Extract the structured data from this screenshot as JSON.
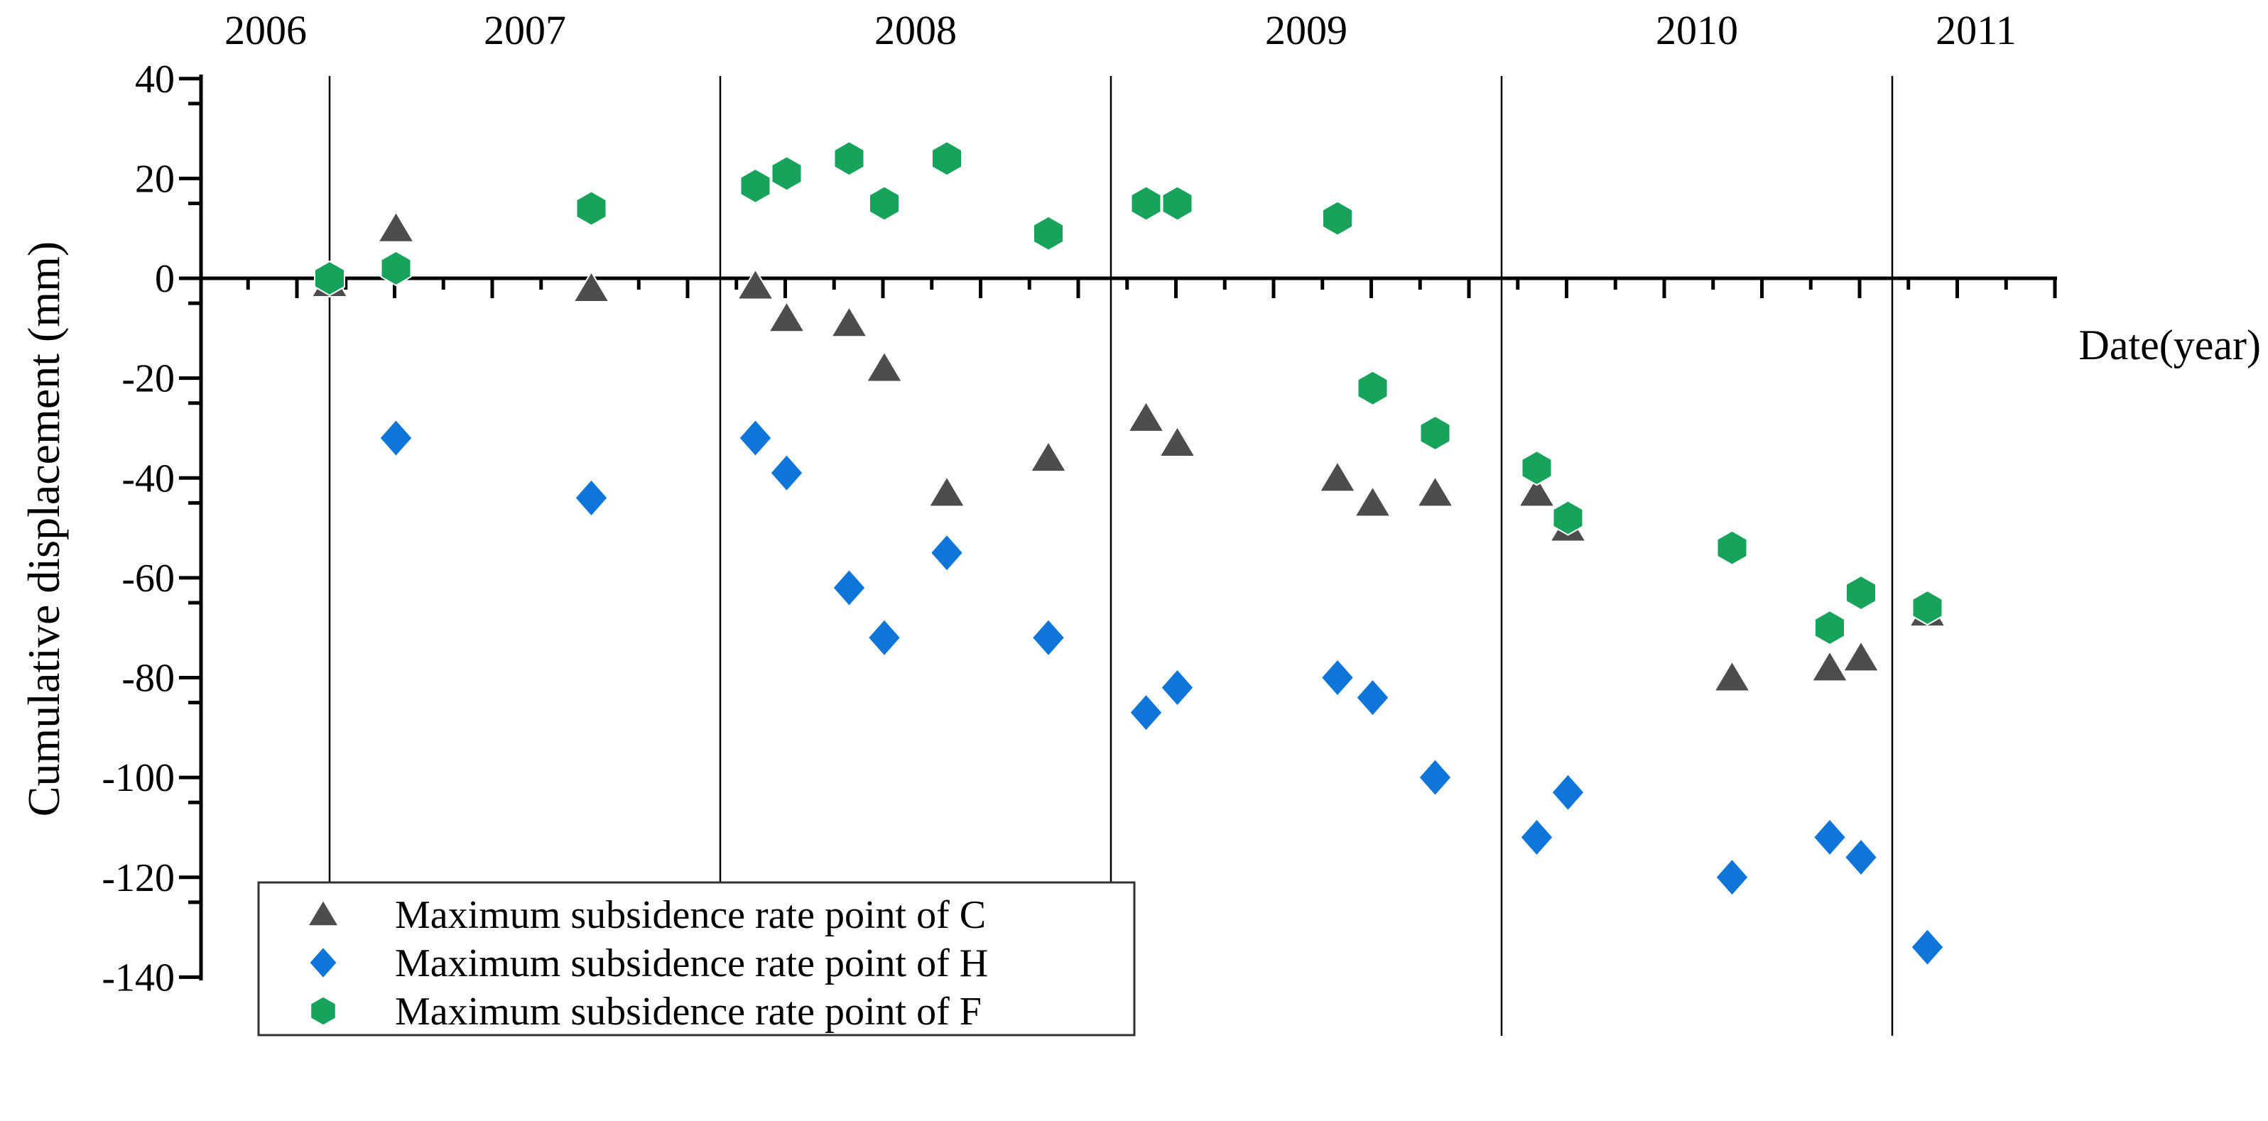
{
  "chart_data": {
    "type": "scatter",
    "title": "",
    "xlabel": "Date(year)",
    "ylabel": "Cumulative displacement (mm)",
    "x_unit": "decimal_year",
    "xlim": [
      2006.67,
      2011.42
    ],
    "ylim": [
      -140,
      40
    ],
    "y_major_ticks": [
      "40",
      "20",
      "0",
      "-20",
      "-40",
      "-60",
      "-80",
      "-100",
      "-120",
      "-140"
    ],
    "y_major_values": [
      40,
      20,
      0,
      -20,
      -40,
      -60,
      -80,
      -100,
      -120,
      -140
    ],
    "y_minor_step": 10,
    "grid": "vertical-year-boundary-lines",
    "year_labels": [
      "2006",
      "2007",
      "2008",
      "2009",
      "2010",
      "2011"
    ],
    "year_boundaries": [
      2007,
      2008,
      2009,
      2010,
      2011
    ],
    "legend_position": "bottom-left",
    "axis_color": "#000000",
    "series": [
      {
        "name": "Maximum subsidence rate point of C",
        "marker": "triangle",
        "color": "#4d4d4d",
        "points": [
          [
            2007.0,
            -1
          ],
          [
            2007.17,
            10
          ],
          [
            2007.67,
            -2
          ],
          [
            2008.09,
            -1.5
          ],
          [
            2008.17,
            -8
          ],
          [
            2008.33,
            -9
          ],
          [
            2008.42,
            -18
          ],
          [
            2008.58,
            -43
          ],
          [
            2008.84,
            -36
          ],
          [
            2009.09,
            -28
          ],
          [
            2009.17,
            -33
          ],
          [
            2009.58,
            -40
          ],
          [
            2009.67,
            -45
          ],
          [
            2009.83,
            -43
          ],
          [
            2010.09,
            -43
          ],
          [
            2010.17,
            -50
          ],
          [
            2010.59,
            -80
          ],
          [
            2010.84,
            -78
          ],
          [
            2010.92,
            -76
          ],
          [
            2011.09,
            -67
          ]
        ]
      },
      {
        "name": "Maximum subsidence rate point of H",
        "marker": "diamond",
        "color": "#0d76d8",
        "points": [
          [
            2007.17,
            -32
          ],
          [
            2007.67,
            -44
          ],
          [
            2008.09,
            -32
          ],
          [
            2008.17,
            -39
          ],
          [
            2008.33,
            -62
          ],
          [
            2008.42,
            -72
          ],
          [
            2008.58,
            -55
          ],
          [
            2008.84,
            -72
          ],
          [
            2009.09,
            -87
          ],
          [
            2009.17,
            -82
          ],
          [
            2009.58,
            -80
          ],
          [
            2009.67,
            -84
          ],
          [
            2009.83,
            -100
          ],
          [
            2010.09,
            -112
          ],
          [
            2010.17,
            -103
          ],
          [
            2010.59,
            -120
          ],
          [
            2010.84,
            -112
          ],
          [
            2010.92,
            -116
          ],
          [
            2011.09,
            -134
          ]
        ]
      },
      {
        "name": "Maximum subsidence rate point of F",
        "marker": "hexagon",
        "color": "#17a35c",
        "points": [
          [
            2007.0,
            0
          ],
          [
            2007.17,
            2
          ],
          [
            2007.67,
            14
          ],
          [
            2008.09,
            18.5
          ],
          [
            2008.17,
            21
          ],
          [
            2008.33,
            24
          ],
          [
            2008.42,
            15
          ],
          [
            2008.58,
            24
          ],
          [
            2008.84,
            9
          ],
          [
            2009.09,
            15
          ],
          [
            2009.17,
            15
          ],
          [
            2009.58,
            12
          ],
          [
            2009.67,
            -22
          ],
          [
            2009.83,
            -31
          ],
          [
            2010.09,
            -38
          ],
          [
            2010.17,
            -48
          ],
          [
            2010.59,
            -54
          ],
          [
            2010.84,
            -70
          ],
          [
            2010.92,
            -63
          ],
          [
            2011.09,
            -66
          ]
        ]
      }
    ]
  }
}
